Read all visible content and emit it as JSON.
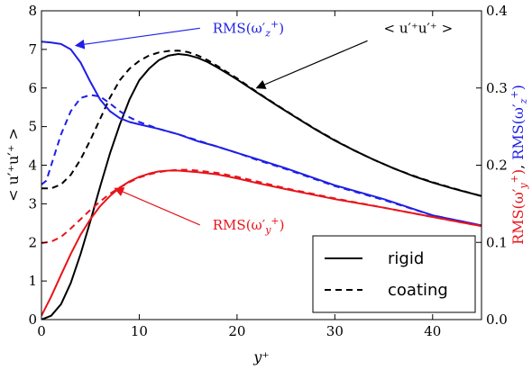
{
  "chart_data": {
    "type": "line",
    "title": "",
    "xlabel": "y⁺",
    "ylabel_left": "< u′⁺u′⁺ >",
    "ylabel_right_parts": [
      {
        "text": "RMS(ω′",
        "sub": "y",
        "sup": "+",
        "close": ")",
        "color": "#e8141b"
      },
      {
        "text": ", ",
        "color": "#000000"
      },
      {
        "text": "RMS(ω′",
        "sub": "z",
        "sup": "+",
        "close": ")",
        "color": "#1f1fe6"
      }
    ],
    "xlim": [
      0,
      45
    ],
    "ylim_left": [
      0,
      8
    ],
    "ylim_right": [
      0,
      0.4
    ],
    "x_ticks": [
      "0",
      "10",
      "20",
      "30",
      "40"
    ],
    "y_ticks_left": [
      "0",
      "1",
      "2",
      "3",
      "4",
      "5",
      "6",
      "7",
      "8"
    ],
    "y_ticks_right": [
      "0.0",
      "0.1",
      "0.2",
      "0.3",
      "0.4"
    ],
    "grid": false,
    "legend": {
      "placement": "bottom-right",
      "entries": [
        {
          "label": "rigid",
          "style": "solid"
        },
        {
          "label": "coating",
          "style": "dashed"
        }
      ]
    },
    "annotations": [
      {
        "id": "annot-uu",
        "text": "< u′⁺u′⁺ >",
        "color": "#000000",
        "xy": [
          22,
          6.0
        ],
        "xytext": [
          35,
          7.55
        ]
      },
      {
        "id": "annot-omz",
        "text_main": "RMS(ω′",
        "sub": "z",
        "sup": "+",
        "close": ")",
        "color": "#1f1fe6",
        "xy": [
          3.5,
          7.1
        ],
        "xytext": [
          17.5,
          7.55
        ]
      },
      {
        "id": "annot-omy",
        "text_main": "RMS(ω′",
        "sub": "y",
        "sup": "+",
        "close": ")",
        "color": "#e8141b",
        "xy": [
          7.5,
          3.4
        ],
        "xytext": [
          17.5,
          2.45
        ]
      }
    ],
    "series": [
      {
        "key": "uu_rigid",
        "axis": "left",
        "color": "#000000",
        "style": "solid",
        "x": [
          0,
          1,
          2,
          3,
          4,
          5,
          6,
          7,
          8,
          9,
          10,
          11,
          12,
          13,
          14,
          15,
          16,
          17,
          18,
          19,
          20,
          22,
          24,
          26,
          28,
          30,
          32,
          34,
          36,
          38,
          40,
          42,
          45
        ],
        "y": [
          0,
          0.1,
          0.4,
          0.95,
          1.7,
          2.55,
          3.45,
          4.3,
          5.05,
          5.7,
          6.2,
          6.5,
          6.72,
          6.84,
          6.88,
          6.85,
          6.78,
          6.67,
          6.53,
          6.38,
          6.22,
          5.89,
          5.56,
          5.24,
          4.93,
          4.64,
          4.38,
          4.14,
          3.92,
          3.72,
          3.55,
          3.4,
          3.2
        ]
      },
      {
        "key": "uu_coating",
        "axis": "left",
        "color": "#000000",
        "style": "dashed",
        "x": [
          0,
          1,
          2,
          3,
          4,
          5,
          6,
          7,
          8,
          9,
          10,
          11,
          12,
          13,
          14,
          15,
          16,
          17,
          18,
          19,
          20,
          22,
          24,
          26,
          28,
          30,
          32,
          34,
          36,
          38,
          40,
          42,
          45
        ],
        "y": [
          3.4,
          3.4,
          3.5,
          3.75,
          4.15,
          4.65,
          5.2,
          5.75,
          6.2,
          6.5,
          6.7,
          6.84,
          6.92,
          6.96,
          6.97,
          6.93,
          6.84,
          6.72,
          6.57,
          6.41,
          6.25,
          5.9,
          5.57,
          5.25,
          4.94,
          4.65,
          4.38,
          4.14,
          3.92,
          3.73,
          3.56,
          3.41,
          3.2
        ]
      },
      {
        "key": "omz_rigid",
        "axis": "right",
        "color": "#1f1fe6",
        "style": "solid",
        "x": [
          0,
          1,
          2,
          3,
          4,
          5,
          6,
          7,
          8,
          9,
          10,
          12,
          14,
          16,
          18,
          20,
          22,
          25,
          30,
          35,
          40,
          45
        ],
        "y": [
          0.36,
          0.359,
          0.357,
          0.35,
          0.333,
          0.308,
          0.285,
          0.27,
          0.261,
          0.256,
          0.253,
          0.247,
          0.24,
          0.231,
          0.224,
          0.216,
          0.208,
          0.196,
          0.174,
          0.156,
          0.135,
          0.122
        ]
      },
      {
        "key": "omz_coating",
        "axis": "right",
        "color": "#1f1fe6",
        "style": "dashed",
        "x": [
          0,
          0.5,
          1,
          2,
          3,
          4,
          5,
          6,
          7,
          8,
          9,
          10,
          12,
          14,
          16,
          18,
          20,
          22,
          25,
          30,
          35,
          40,
          45
        ],
        "y": [
          0.175,
          0.18,
          0.2,
          0.24,
          0.27,
          0.287,
          0.291,
          0.289,
          0.28,
          0.27,
          0.262,
          0.256,
          0.247,
          0.24,
          0.232,
          0.224,
          0.216,
          0.207,
          0.195,
          0.173,
          0.155,
          0.135,
          0.122
        ]
      },
      {
        "key": "omy_rigid",
        "axis": "right",
        "color": "#e8141b",
        "style": "solid",
        "x": [
          0,
          1,
          2,
          3,
          4,
          5,
          6,
          7,
          8,
          9,
          10,
          11,
          12,
          13,
          14,
          15,
          16,
          18,
          20,
          22,
          25,
          30,
          35,
          40,
          45
        ],
        "y": [
          0.005,
          0.03,
          0.058,
          0.085,
          0.11,
          0.13,
          0.147,
          0.16,
          0.171,
          0.179,
          0.185,
          0.189,
          0.192,
          0.193,
          0.193,
          0.192,
          0.191,
          0.188,
          0.183,
          0.177,
          0.169,
          0.156,
          0.145,
          0.133,
          0.121
        ]
      },
      {
        "key": "omy_coating",
        "axis": "right",
        "color": "#e8141b",
        "style": "dashed",
        "x": [
          0,
          1,
          2,
          3,
          4,
          5,
          6,
          7,
          8,
          9,
          10,
          11,
          12,
          13,
          14,
          15,
          16,
          18,
          20,
          22,
          25,
          30,
          35,
          40,
          45
        ],
        "y": [
          0.099,
          0.101,
          0.107,
          0.118,
          0.13,
          0.142,
          0.153,
          0.163,
          0.171,
          0.178,
          0.184,
          0.188,
          0.191,
          0.193,
          0.194,
          0.194,
          0.193,
          0.19,
          0.185,
          0.179,
          0.17,
          0.157,
          0.145,
          0.133,
          0.121
        ]
      }
    ]
  }
}
